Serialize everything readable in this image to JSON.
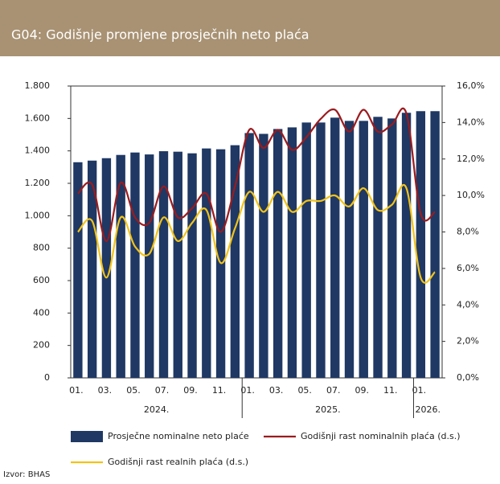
{
  "chart_data": {
    "type": "bar_line",
    "title": "G04: Godišnje promjene prosječnih neto plaća",
    "source": "Izvor: BHAS",
    "categories": [
      "01.",
      null,
      "03.",
      null,
      "05.",
      null,
      "07.",
      null,
      "09.",
      null,
      "11.",
      null,
      "01.",
      null,
      "03.",
      null,
      "05.",
      null,
      "07.",
      null,
      "09.",
      null,
      "11.",
      null,
      "01.",
      null
    ],
    "years": [
      "2024.",
      "2025.",
      "2026."
    ],
    "series": [
      {
        "name": "Prosječne nominalne neto plaće",
        "color": "#1f3864",
        "kind": "bar",
        "values": [
          1330,
          1340,
          1355,
          1375,
          1390,
          1378,
          1398,
          1395,
          1385,
          1415,
          1410,
          1435,
          1510,
          1505,
          1535,
          1545,
          1575,
          1575,
          1605,
          1585,
          1585,
          1610,
          1600,
          1635,
          1645,
          1645
        ]
      },
      {
        "name": "Godišnji rast nominalnih plaća (d.s.)",
        "color": "#9b1b1e",
        "kind": "line",
        "axis": "y2",
        "values": [
          10.1,
          10.6,
          7.5,
          10.7,
          8.8,
          8.5,
          10.5,
          8.8,
          9.3,
          10.1,
          8.0,
          10.5,
          13.6,
          12.6,
          13.6,
          12.5,
          13.2,
          14.2,
          14.7,
          13.5,
          14.7,
          13.5,
          13.9,
          14.5,
          9.0,
          9.1
        ]
      },
      {
        "name": "Godišnji rast realnih plaća (d.s.)",
        "color": "#f2c318",
        "kind": "line",
        "axis": "y2",
        "values": [
          8.0,
          8.6,
          5.5,
          8.8,
          7.2,
          6.8,
          8.8,
          7.5,
          8.5,
          9.2,
          6.3,
          8.2,
          10.2,
          9.1,
          10.2,
          9.1,
          9.7,
          9.7,
          10.0,
          9.4,
          10.4,
          9.2,
          9.5,
          10.4,
          5.5,
          5.8
        ]
      }
    ],
    "ylim": [
      0,
      1800
    ],
    "yticks": [
      0,
      200,
      400,
      600,
      800,
      {
        "value": 1000,
        "label": "1.000"
      },
      {
        "value": 1200,
        "label": "1.200"
      },
      {
        "value": 1400,
        "label": "1.400"
      },
      {
        "value": 1600,
        "label": "1.600"
      },
      {
        "value": 1800,
        "label": "1.800"
      }
    ],
    "y2lim": [
      0,
      16
    ],
    "y2ticks": [
      {
        "value": 0,
        "label": "0,0%"
      },
      {
        "value": 2,
        "label": "2,0%"
      },
      {
        "value": 4,
        "label": "4,0%"
      },
      {
        "value": 6,
        "label": "6,0%"
      },
      {
        "value": 8,
        "label": "8,0%"
      },
      {
        "value": 10,
        "label": "10,0%"
      },
      {
        "value": 12,
        "label": "12,0%"
      },
      {
        "value": 14,
        "label": "14,0%"
      },
      {
        "value": 16,
        "label": "16,0%"
      }
    ],
    "grid": false
  }
}
